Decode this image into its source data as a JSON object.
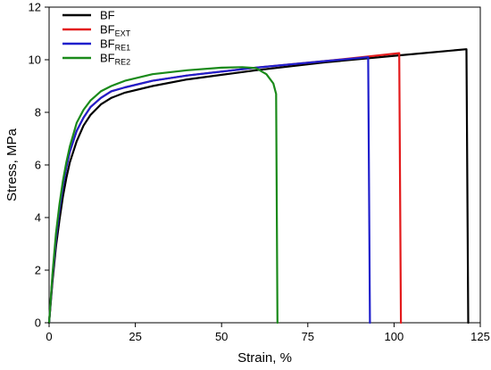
{
  "chart_data": {
    "type": "line",
    "xlabel": "Strain, %",
    "ylabel": "Stress,  MPa",
    "xlim": [
      0,
      125
    ],
    "ylim": [
      0,
      12
    ],
    "xticks": [
      0,
      25,
      50,
      75,
      100,
      125
    ],
    "yticks": [
      0,
      2,
      4,
      6,
      8,
      10,
      12
    ],
    "grid": false,
    "legend_position": "top-left",
    "series": [
      {
        "name": "BF",
        "name_base": "BF",
        "name_sub": "",
        "color": "#000000",
        "x": [
          0,
          1,
          2,
          3,
          4,
          5,
          6,
          8,
          10,
          12,
          15,
          18,
          22,
          30,
          40,
          60,
          80,
          100,
          121,
          121.5
        ],
        "y": [
          0,
          1.6,
          2.9,
          3.9,
          4.8,
          5.5,
          6.1,
          6.9,
          7.5,
          7.9,
          8.3,
          8.55,
          8.75,
          9.0,
          9.25,
          9.6,
          9.9,
          10.15,
          10.4,
          0
        ]
      },
      {
        "name": "BFEXT",
        "name_base": "BF",
        "name_sub": "EXT",
        "color": "#e31a1c",
        "x": [
          0,
          1,
          2,
          3,
          4,
          5,
          6,
          8,
          10,
          12,
          15,
          18,
          22,
          30,
          40,
          60,
          80,
          101.5,
          102
        ],
        "y": [
          0,
          1.8,
          3.2,
          4.3,
          5.2,
          5.9,
          6.5,
          7.3,
          7.8,
          8.2,
          8.55,
          8.8,
          8.95,
          9.2,
          9.4,
          9.7,
          9.95,
          10.25,
          0
        ]
      },
      {
        "name": "BFRE1",
        "name_base": "BF",
        "name_sub": "RE1",
        "color": "#1f1fcc",
        "x": [
          0,
          1,
          2,
          3,
          4,
          5,
          6,
          8,
          10,
          12,
          15,
          18,
          22,
          30,
          40,
          60,
          80,
          92.5,
          93
        ],
        "y": [
          0,
          1.8,
          3.2,
          4.3,
          5.2,
          5.9,
          6.5,
          7.3,
          7.8,
          8.2,
          8.55,
          8.8,
          8.95,
          9.2,
          9.4,
          9.7,
          9.95,
          10.1,
          0
        ]
      },
      {
        "name": "BFRE2",
        "name_base": "BF",
        "name_sub": "RE2",
        "color": "#1a8a1a",
        "x": [
          0,
          1,
          2,
          3,
          4,
          5,
          6,
          8,
          10,
          12,
          15,
          18,
          22,
          30,
          40,
          50,
          56,
          60,
          63,
          65,
          65.8,
          66.2
        ],
        "y": [
          0,
          1.9,
          3.4,
          4.5,
          5.4,
          6.1,
          6.7,
          7.6,
          8.1,
          8.45,
          8.8,
          9.0,
          9.2,
          9.45,
          9.6,
          9.7,
          9.72,
          9.68,
          9.45,
          9.1,
          8.7,
          0
        ]
      }
    ]
  }
}
